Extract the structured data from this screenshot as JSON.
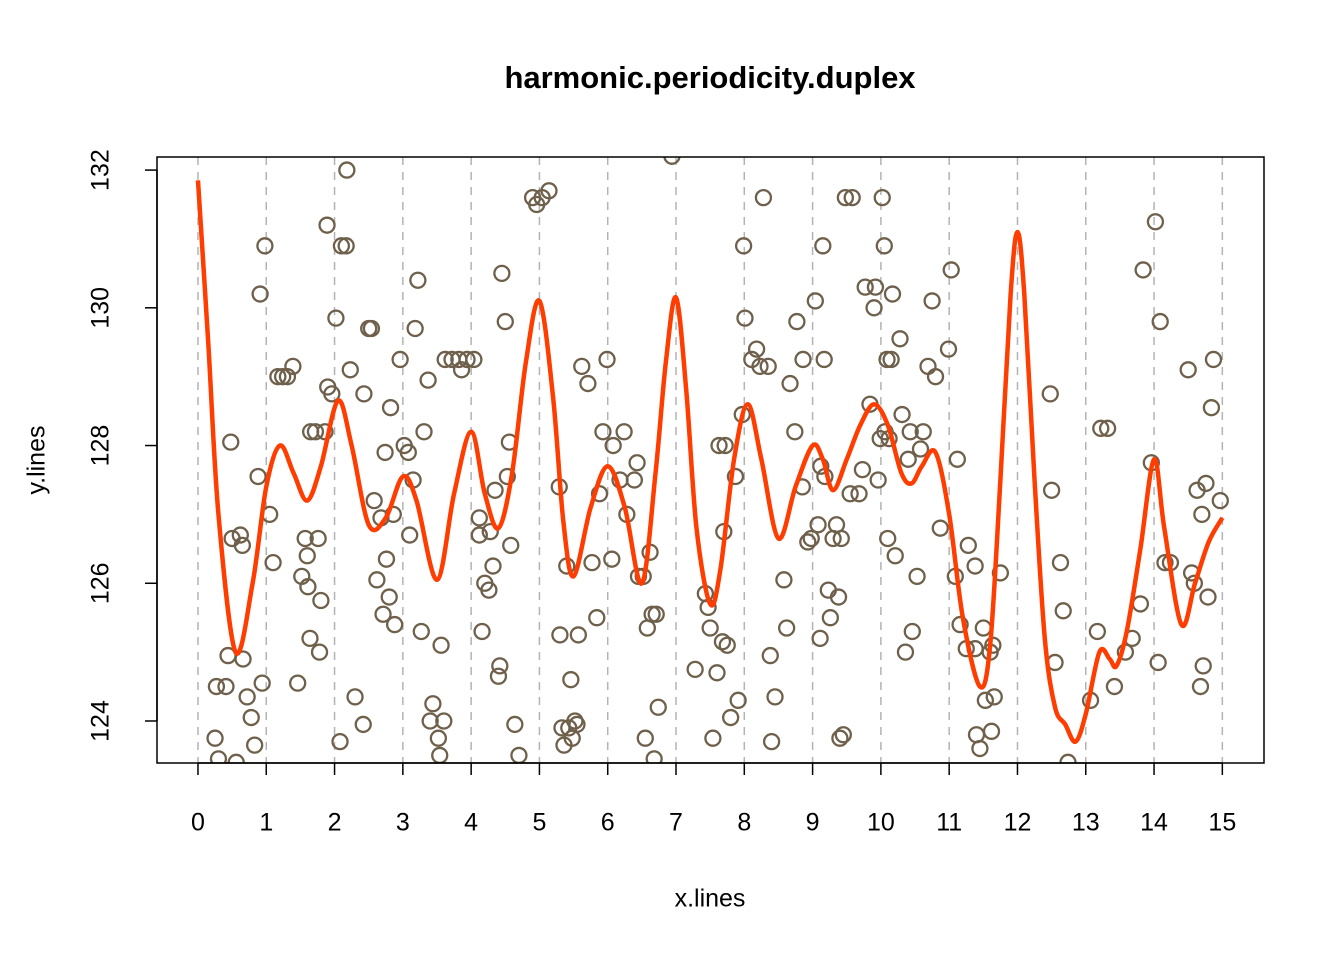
{
  "chart_data": {
    "type": "scatter",
    "title": "harmonic.periodicity.duplex",
    "x_label": "x.lines",
    "y_label": "y.lines",
    "xlim": [
      -0.6,
      15.61
    ],
    "ylim": [
      123.39,
      132.19
    ],
    "xticks": [
      0,
      1,
      2,
      3,
      4,
      5,
      6,
      7,
      8,
      9,
      10,
      11,
      12,
      13,
      14,
      15
    ],
    "yticks": [
      124,
      126,
      128,
      130,
      132
    ],
    "grid": "x",
    "series": [
      {
        "type": "scatter",
        "color": "#6e604b",
        "x": [
          0.25,
          0.3,
          0.27,
          0.41,
          0.44,
          0.56,
          0.48,
          0.5,
          0.62,
          0.65,
          0.66,
          0.72,
          0.78,
          0.83,
          0.88,
          0.94,
          0.91,
          0.98,
          1.05,
          1.1,
          1.17,
          1.24,
          1.31,
          1.39,
          1.46,
          1.52,
          1.57,
          1.6,
          1.61,
          1.64,
          1.65,
          1.76,
          1.78,
          1.8,
          1.72,
          1.86,
          1.89,
          1.9,
          1.96,
          2.02,
          2.08,
          2.1,
          2.17,
          2.18,
          2.23,
          2.3,
          2.42,
          2.43,
          2.5,
          2.54,
          2.58,
          2.62,
          2.68,
          2.71,
          2.74,
          2.76,
          2.8,
          2.82,
          2.86,
          2.88,
          2.96,
          3.02,
          3.08,
          3.1,
          3.15,
          3.18,
          3.22,
          3.27,
          3.31,
          3.37,
          3.4,
          3.44,
          3.52,
          3.54,
          3.56,
          3.6,
          3.62,
          3.72,
          3.82,
          3.86,
          3.94,
          4.04,
          4.12,
          4.12,
          4.16,
          4.2,
          4.26,
          4.28,
          4.32,
          4.35,
          4.4,
          4.42,
          4.45,
          4.5,
          4.53,
          4.56,
          4.58,
          4.64,
          4.7,
          4.9,
          4.96,
          5.04,
          5.14,
          5.29,
          5.3,
          5.33,
          5.36,
          5.4,
          5.43,
          5.46,
          5.48,
          5.52,
          5.55,
          5.57,
          5.62,
          5.71,
          5.77,
          5.84,
          5.88,
          5.93,
          5.99,
          6.06,
          6.08,
          6.18,
          6.24,
          6.28,
          6.39,
          6.43,
          6.45,
          6.52,
          6.55,
          6.58,
          6.62,
          6.65,
          6.71,
          6.68,
          6.74,
          6.94,
          7.28,
          7.43,
          7.47,
          7.5,
          7.54,
          7.6,
          7.63,
          7.68,
          7.7,
          7.72,
          7.75,
          7.8,
          7.87,
          7.91,
          7.97,
          7.99,
          8.01,
          8.11,
          8.18,
          8.23,
          8.28,
          8.35,
          8.38,
          8.4,
          8.45,
          8.58,
          8.62,
          8.67,
          8.74,
          8.77,
          8.85,
          8.86,
          8.93,
          8.98,
          9.04,
          9.08,
          9.11,
          9.12,
          9.15,
          9.17,
          9.18,
          9.23,
          9.26,
          9.3,
          9.35,
          9.38,
          9.4,
          9.42,
          9.45,
          9.48,
          9.58,
          9.55,
          9.68,
          9.73,
          9.77,
          9.84,
          9.92,
          9.9,
          9.96,
          9.99,
          10.02,
          10.05,
          10.06,
          10.09,
          10.1,
          10.12,
          10.17,
          10.15,
          10.21,
          10.28,
          10.31,
          10.36,
          10.4,
          10.43,
          10.46,
          10.53,
          10.58,
          10.62,
          10.69,
          10.75,
          10.8,
          10.87,
          10.99,
          11.03,
          11.09,
          11.12,
          11.16,
          11.28,
          11.25,
          11.38,
          11.38,
          11.4,
          11.45,
          11.5,
          11.53,
          11.6,
          11.64,
          11.62,
          11.66,
          11.75,
          12.48,
          12.5,
          12.55,
          12.63,
          12.67,
          12.74,
          13.07,
          13.17,
          13.22,
          13.32,
          13.42,
          13.58,
          13.68,
          13.8,
          13.84,
          13.96,
          14.02,
          14.09,
          14.06,
          14.16,
          14.24,
          14.5,
          14.55,
          14.59,
          14.63,
          14.7,
          14.68,
          14.72,
          14.76,
          14.79,
          14.84,
          14.87,
          14.97
        ],
        "values": [
          123.75,
          123.45,
          124.5,
          124.5,
          124.95,
          123.4,
          128.05,
          126.65,
          126.7,
          126.55,
          124.9,
          124.35,
          124.05,
          123.65,
          127.55,
          124.55,
          130.2,
          130.9,
          127.0,
          126.3,
          129.0,
          129.0,
          129.0,
          129.15,
          124.55,
          126.1,
          126.65,
          126.4,
          125.95,
          125.2,
          128.2,
          126.65,
          125.0,
          125.75,
          128.2,
          128.2,
          131.2,
          128.85,
          128.75,
          129.85,
          123.7,
          130.9,
          130.9,
          132.0,
          129.1,
          124.35,
          123.95,
          128.75,
          129.7,
          129.7,
          127.2,
          126.05,
          126.95,
          125.55,
          127.9,
          126.35,
          125.8,
          128.55,
          127.0,
          125.4,
          129.25,
          128.0,
          127.9,
          126.7,
          127.5,
          129.7,
          130.4,
          125.3,
          128.2,
          128.95,
          124.0,
          124.25,
          123.75,
          123.5,
          125.1,
          124.0,
          129.25,
          129.25,
          129.25,
          129.1,
          129.25,
          129.25,
          126.95,
          126.7,
          125.3,
          126.0,
          125.9,
          126.75,
          126.25,
          127.35,
          124.65,
          124.8,
          130.5,
          129.8,
          127.55,
          128.05,
          126.55,
          123.95,
          123.5,
          131.6,
          131.5,
          131.6,
          131.7,
          127.4,
          125.25,
          123.9,
          123.65,
          126.25,
          123.9,
          124.6,
          123.75,
          124.0,
          123.95,
          125.25,
          129.15,
          128.9,
          126.3,
          125.5,
          127.3,
          128.2,
          129.25,
          126.35,
          128.0,
          127.5,
          128.2,
          127.0,
          127.5,
          127.75,
          126.1,
          126.1,
          123.75,
          125.35,
          126.45,
          125.55,
          125.55,
          123.45,
          124.2,
          132.2,
          124.75,
          125.85,
          125.65,
          125.35,
          123.75,
          124.7,
          128.0,
          125.15,
          126.75,
          128.0,
          125.1,
          124.05,
          127.55,
          124.3,
          128.45,
          130.9,
          129.85,
          129.25,
          129.4,
          129.15,
          131.6,
          129.15,
          124.95,
          123.7,
          124.35,
          126.05,
          125.35,
          128.9,
          128.2,
          129.8,
          127.4,
          129.25,
          126.6,
          126.65,
          130.1,
          126.85,
          125.2,
          127.7,
          130.9,
          129.25,
          127.55,
          125.9,
          125.5,
          126.65,
          126.85,
          125.8,
          123.75,
          126.65,
          123.8,
          131.6,
          131.6,
          127.3,
          127.3,
          127.65,
          130.3,
          128.6,
          130.3,
          130.0,
          127.5,
          128.1,
          131.6,
          130.9,
          128.2,
          129.25,
          126.65,
          128.1,
          130.2,
          129.25,
          126.4,
          129.55,
          128.45,
          125.0,
          127.8,
          128.2,
          125.3,
          126.1,
          127.95,
          128.2,
          129.15,
          130.1,
          129.0,
          126.8,
          129.4,
          130.55,
          126.1,
          127.8,
          125.4,
          126.55,
          125.05,
          125.05,
          126.25,
          123.8,
          123.6,
          125.35,
          124.3,
          125.0,
          125.1,
          123.85,
          124.35,
          126.15,
          128.75,
          127.35,
          124.85,
          126.3,
          125.6,
          123.4,
          124.3,
          125.3,
          128.25,
          128.25,
          124.5,
          125.0,
          125.2,
          125.7,
          130.55,
          127.75,
          131.25,
          129.8,
          124.85,
          126.3,
          126.3,
          129.1,
          126.15,
          126.0,
          127.35,
          127.0,
          124.5,
          124.8,
          127.45,
          125.8,
          128.55,
          129.25,
          127.2
        ]
      },
      {
        "type": "line",
        "color": "#ff3d00",
        "x": [
          0,
          0.15,
          0.3,
          0.55,
          0.8,
          1.0,
          1.2,
          1.4,
          1.6,
          1.8,
          2.05,
          2.25,
          2.5,
          2.75,
          3.0,
          3.2,
          3.5,
          3.75,
          4.0,
          4.2,
          4.4,
          4.6,
          4.8,
          5.0,
          5.2,
          5.35,
          5.5,
          5.75,
          6.0,
          6.25,
          6.5,
          6.7,
          6.85,
          7.0,
          7.15,
          7.3,
          7.5,
          7.65,
          7.85,
          8.05,
          8.25,
          8.5,
          8.75,
          9.0,
          9.15,
          9.3,
          9.5,
          9.7,
          9.9,
          10.1,
          10.3,
          10.45,
          10.6,
          10.8,
          11.0,
          11.2,
          11.45,
          11.6,
          11.75,
          11.9,
          12.0,
          12.1,
          12.25,
          12.4,
          12.55,
          12.7,
          12.85,
          13.0,
          13.2,
          13.35,
          13.45,
          13.6,
          13.8,
          14.0,
          14.15,
          14.4,
          14.6,
          14.8,
          15.0
        ],
        "values": [
          131.85,
          129.5,
          127.0,
          125.0,
          126.0,
          127.4,
          128.0,
          127.6,
          127.2,
          127.7,
          128.65,
          128.0,
          126.85,
          126.95,
          127.55,
          127.2,
          126.05,
          127.3,
          128.2,
          127.3,
          126.8,
          127.6,
          129.2,
          130.1,
          128.7,
          126.9,
          126.1,
          127.1,
          127.7,
          127.1,
          126.0,
          127.6,
          129.2,
          130.15,
          128.8,
          126.8,
          125.7,
          126.2,
          127.8,
          128.6,
          127.8,
          126.65,
          127.4,
          128.0,
          127.8,
          127.35,
          127.8,
          128.3,
          128.6,
          128.3,
          127.6,
          127.45,
          127.7,
          127.9,
          127.0,
          125.5,
          124.5,
          125.1,
          127.5,
          130.2,
          131.1,
          130.2,
          127.5,
          125.2,
          124.2,
          123.95,
          123.7,
          124.1,
          125.0,
          124.9,
          124.8,
          125.3,
          126.5,
          127.8,
          126.8,
          125.4,
          126.0,
          126.6,
          126.95
        ]
      }
    ]
  }
}
